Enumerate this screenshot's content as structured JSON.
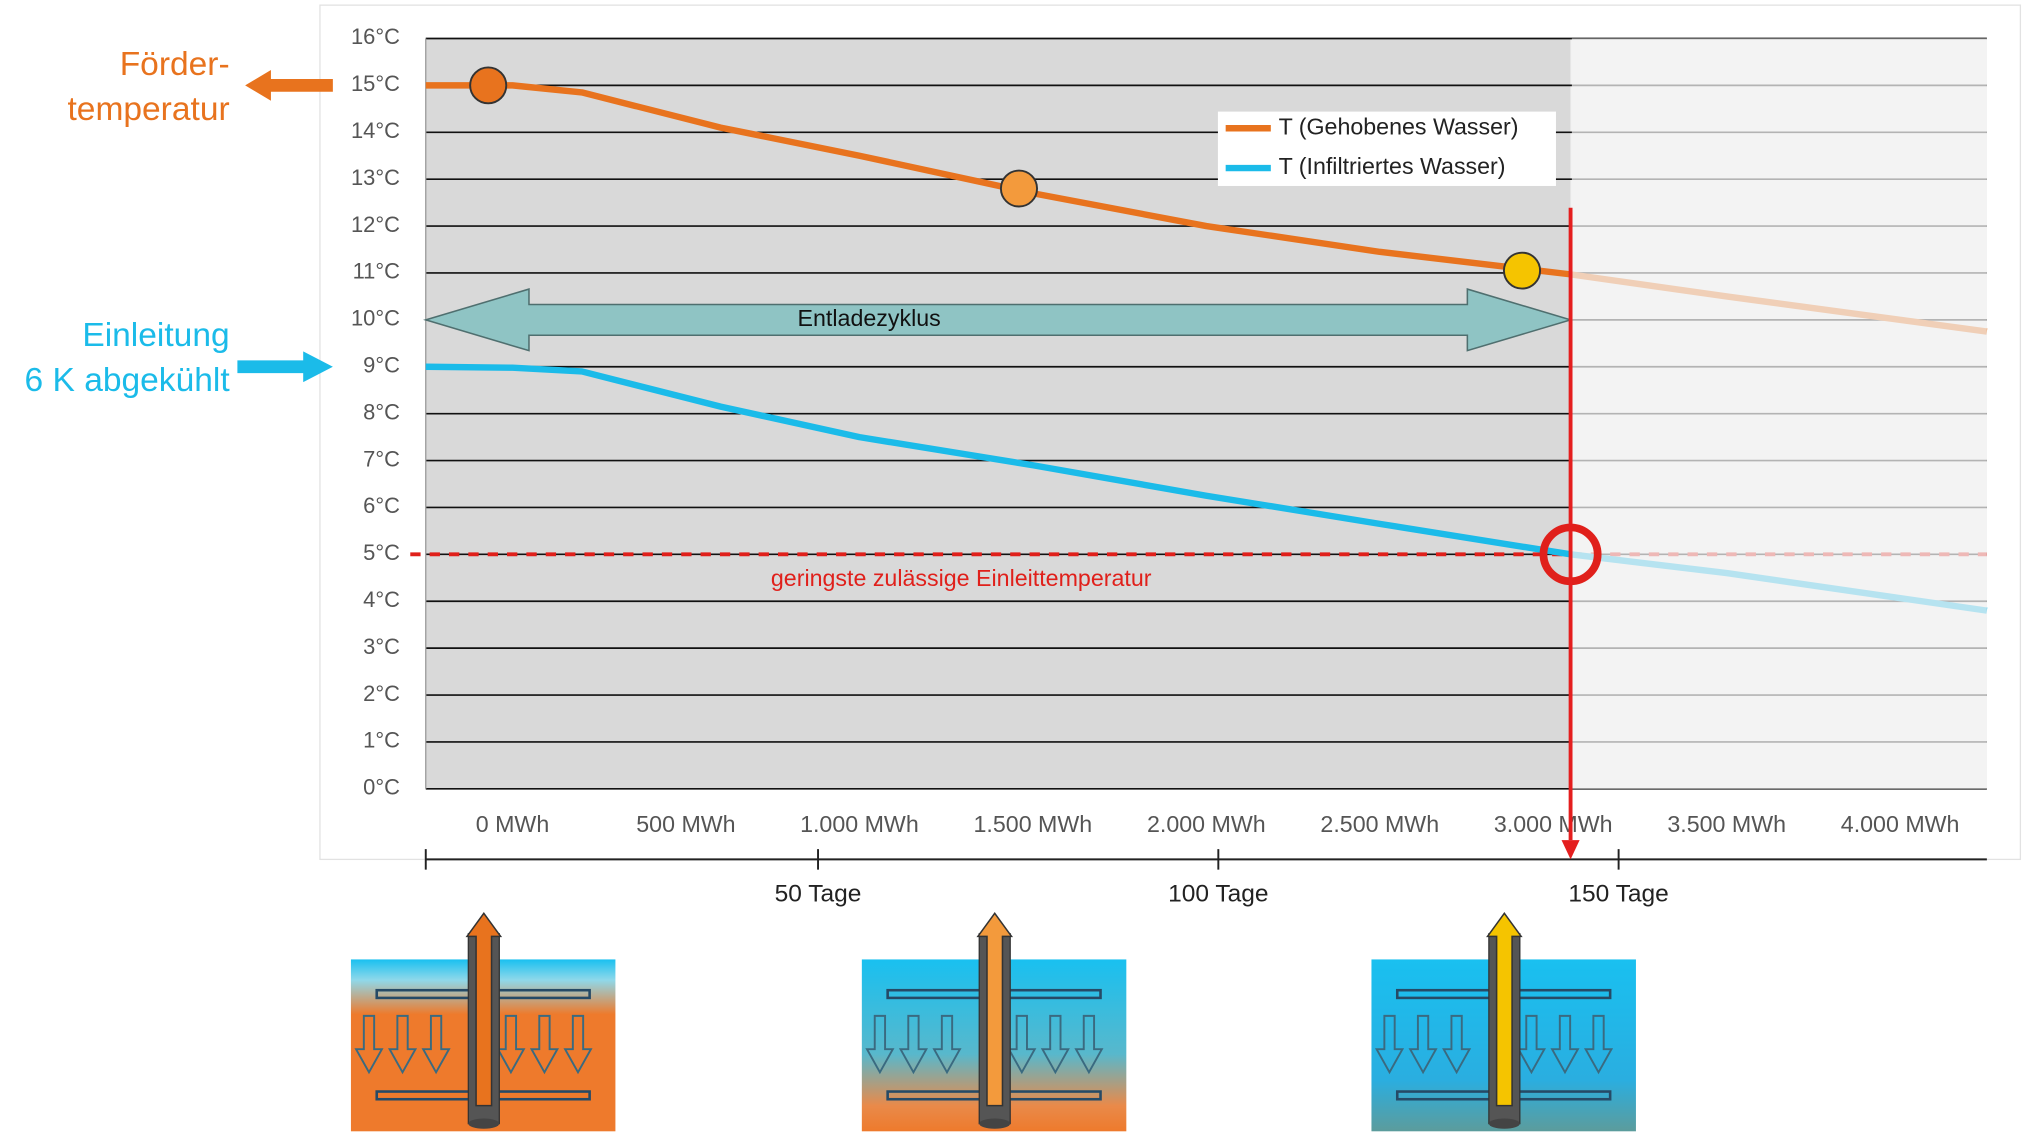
{
  "chart_data": {
    "type": "line",
    "x": [
      -250,
      0,
      200,
      600,
      1000,
      1500,
      2000,
      2500,
      3050,
      3500,
      4250
    ],
    "series": [
      {
        "name": "T (Gehobenes Wasser)",
        "color": "#e8731e",
        "values": [
          15,
          15,
          14.85,
          14.1,
          13.5,
          12.7,
          12,
          11.45,
          10.97,
          10.5,
          9.75
        ]
      },
      {
        "name": "T (Infiltriertes Wasser)",
        "color": "#1bbbe9",
        "values": [
          9,
          8.98,
          8.9,
          8.15,
          7.5,
          6.9,
          6.25,
          5.65,
          5,
          4.6,
          3.8
        ]
      }
    ],
    "xlim": [
      -250,
      4250
    ],
    "xticks": [
      {
        "value": 0,
        "label": "0 MWh"
      },
      {
        "value": 500,
        "label": "500 MWh"
      },
      {
        "value": 1000,
        "label": "1.000 MWh"
      },
      {
        "value": 1500,
        "label": "1.500 MWh"
      },
      {
        "value": 2000,
        "label": "2.000 MWh"
      },
      {
        "value": 2500,
        "label": "2.500 MWh"
      },
      {
        "value": 3000,
        "label": "3.000 MWh"
      },
      {
        "value": 3500,
        "label": "3.500 MWh"
      },
      {
        "value": 4000,
        "label": "4.000 MWh"
      }
    ],
    "x2lim": [
      1,
      196
    ],
    "x2ticks": [
      {
        "value": 50,
        "label": "50 Tage"
      },
      {
        "value": 100,
        "label": "100 Tage"
      },
      {
        "value": 150,
        "label": "150 Tage"
      }
    ],
    "ylim": [
      0,
      16
    ],
    "yticks": [
      {
        "value": 0,
        "label": "0°C"
      },
      {
        "value": 1,
        "label": "1°C"
      },
      {
        "value": 2,
        "label": "2°C"
      },
      {
        "value": 3,
        "label": "3°C"
      },
      {
        "value": 4,
        "label": "4°C"
      },
      {
        "value": 5,
        "label": "5°C"
      },
      {
        "value": 6,
        "label": "6°C"
      },
      {
        "value": 7,
        "label": "7°C"
      },
      {
        "value": 8,
        "label": "8°C"
      },
      {
        "value": 9,
        "label": "9°C"
      },
      {
        "value": 10,
        "label": "10°C"
      },
      {
        "value": 11,
        "label": "11°C"
      },
      {
        "value": 12,
        "label": "12°C"
      },
      {
        "value": 13,
        "label": "13°C"
      },
      {
        "value": 14,
        "label": "14°C"
      },
      {
        "value": 15,
        "label": "15°C"
      },
      {
        "value": 16,
        "label": "16°C"
      }
    ],
    "grid": true,
    "legend": "upper right",
    "points": [
      {
        "x": -70,
        "y": 15,
        "color": "#e8731e"
      },
      {
        "x": 1460,
        "y": 12.8,
        "color": "#f39a3c"
      },
      {
        "x": 2910,
        "y": 11.05,
        "color": "#f5c400"
      }
    ],
    "span": {
      "label": "Entladezyklus",
      "from": -250,
      "to": 3050,
      "y": 10,
      "color": "#8fc4c4"
    },
    "threshold": {
      "y": 5,
      "label": "geringste zulässige Einleittemperatur",
      "color": "#e0201b"
    },
    "vline": {
      "x": 3050,
      "color": "#e41e1e"
    },
    "side_labels": [
      {
        "lines": [
          "Förder-",
          "temperatur"
        ],
        "y": 15,
        "color": "#e8731e",
        "direction": "left"
      },
      {
        "lines": [
          "Einleitung",
          "6 K abgekühlt"
        ],
        "y": 9,
        "color": "#1bbbe9",
        "direction": "right"
      }
    ]
  }
}
